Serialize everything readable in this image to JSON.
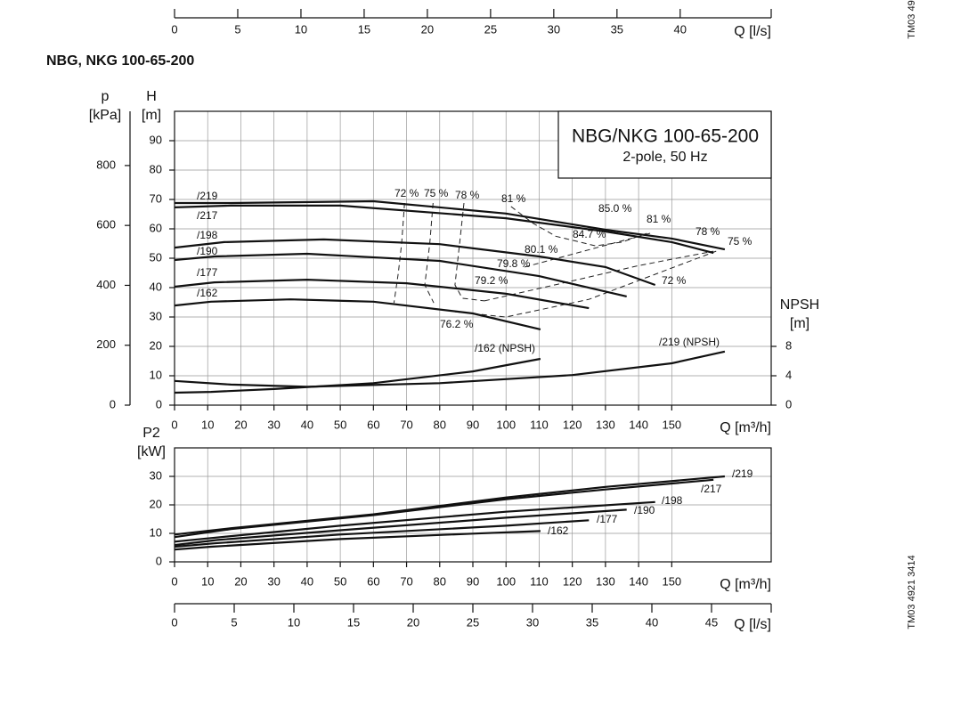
{
  "title": "NBG, NKG 100-65-200",
  "drawing_numbers": [
    "TM03 49",
    "TM03 4921 3414"
  ],
  "info_box": {
    "title": "NBG/NKG 100-65-200",
    "subtitle": "2-pole, 50 Hz"
  },
  "chart_data": [
    {
      "type": "axis",
      "xlabel": "Q [l/s]",
      "xlim": [
        0,
        47.2
      ],
      "xticks": [
        0,
        5,
        10,
        15,
        20,
        25,
        30,
        35,
        40
      ]
    },
    {
      "type": "line",
      "xlabel": "Q [m³/h]",
      "ylabel": [
        "H",
        "[m]"
      ],
      "plabel": [
        "p",
        "[kPa]"
      ],
      "npshlabel": [
        "NPSH",
        "[m]"
      ],
      "xlim": [
        0,
        180
      ],
      "xticks": [
        0,
        10,
        20,
        30,
        40,
        50,
        60,
        70,
        80,
        90,
        100,
        110,
        120,
        130,
        140,
        150
      ],
      "ylim": [
        0,
        100
      ],
      "yticks": [
        0,
        10,
        20,
        30,
        40,
        50,
        60,
        70,
        80,
        90
      ],
      "plim": [
        0,
        981
      ],
      "pticks": [
        0,
        200,
        400,
        600,
        800
      ],
      "npshlim": [
        0,
        40
      ],
      "npshticks": [
        0,
        4,
        8
      ],
      "grid": true,
      "series": [
        {
          "name": "/219",
          "color": "#111111",
          "x": [
            0,
            17,
            60,
            100,
            130,
            150,
            166
          ],
          "values": [
            68.8,
            68.8,
            69.4,
            65.2,
            59.7,
            56.7,
            53
          ]
        },
        {
          "name": "/217",
          "color": "#111111",
          "x": [
            0,
            17,
            50,
            100,
            130,
            150,
            162.6
          ],
          "values": [
            67.3,
            67.9,
            67.9,
            63.6,
            59.1,
            55.5,
            51.8
          ]
        },
        {
          "name": "/198",
          "color": "#111111",
          "x": [
            0,
            15,
            45,
            80,
            110,
            130,
            145
          ],
          "values": [
            53.6,
            55.5,
            56.4,
            54.8,
            50.6,
            47,
            40.9
          ]
        },
        {
          "name": "/190",
          "color": "#111111",
          "x": [
            0,
            12,
            40,
            80,
            110,
            136.4
          ],
          "values": [
            49.4,
            50.6,
            51.5,
            49.1,
            43.9,
            37
          ]
        },
        {
          "name": "/177",
          "color": "#111111",
          "x": [
            0,
            12,
            40,
            70,
            100,
            125
          ],
          "values": [
            40.3,
            41.8,
            42.7,
            41.5,
            37.9,
            33
          ]
        },
        {
          "name": "/162",
          "color": "#111111",
          "x": [
            0,
            11,
            35,
            60,
            90,
            110.4
          ],
          "values": [
            33.9,
            35.2,
            36,
            35.2,
            31.2,
            25.8
          ]
        },
        {
          "name": "/162 (NPSH)",
          "axis": "npsh",
          "color": "#111111",
          "x": [
            0,
            11,
            30,
            60,
            90,
            110.4
          ],
          "values": [
            1.7,
            1.8,
            2.2,
            3,
            4.6,
            6.3
          ]
        },
        {
          "name": "/219 (NPSH)",
          "axis": "npsh",
          "color": "#111111",
          "x": [
            0,
            17,
            40,
            80,
            120,
            150,
            166
          ],
          "values": [
            3.3,
            2.8,
            2.5,
            3,
            4.1,
            5.7,
            7.3
          ]
        }
      ],
      "efficiency_curves": [
        {
          "x": [
            69.4,
            68.5,
            67.5,
            66.2
          ],
          "values": [
            68.8,
            55,
            45,
            34.8
          ]
        },
        {
          "x": [
            78,
            77,
            75.5,
            78.2
          ],
          "values": [
            68.8,
            55,
            40.9,
            34.8
          ]
        },
        {
          "x": [
            87.3,
            86,
            84.6,
            86.8,
            93.5
          ],
          "values": [
            68.8,
            55,
            40.9,
            36.4,
            35.5
          ]
        },
        {
          "x": [
            101.5,
            108,
            115,
            127,
            135,
            142.5
          ],
          "values": [
            67.6,
            62,
            57.5,
            54.2,
            55.5,
            58.5
          ]
        },
        {
          "x": [
            93.5,
            115,
            140,
            162.6
          ],
          "values": [
            35.5,
            41,
            47.5,
            52.4
          ]
        },
        {
          "x": [
            84.6,
            100,
            125,
            163.4
          ],
          "values": [
            31.8,
            30,
            36,
            52.4
          ]
        },
        {
          "x": [
            105.6,
            143.5
          ],
          "values": [
            47,
            58.5
          ]
        }
      ],
      "annotations": [
        "72 %",
        "75 %",
        "78 %",
        "81 %",
        "85.0 %",
        "81 %",
        "78 %",
        "75 %",
        "84.7 %",
        "80.1 %",
        "79.8 %",
        "79.2 %",
        "72 %",
        "76.2 %"
      ]
    },
    {
      "type": "line",
      "xlabel": "Q [m³/h]",
      "ylabel": [
        "P2",
        "[kW]"
      ],
      "xlim": [
        0,
        180
      ],
      "xticks": [
        0,
        10,
        20,
        30,
        40,
        50,
        60,
        70,
        80,
        90,
        100,
        110,
        120,
        130,
        140,
        150
      ],
      "ylim": [
        0,
        40
      ],
      "yticks": [
        0,
        10,
        20,
        30
      ],
      "grid": true,
      "series": [
        {
          "name": "/219",
          "color": "#111111",
          "x": [
            0,
            17,
            60,
            100,
            130,
            166
          ],
          "values": [
            9.6,
            11.8,
            16.7,
            22.6,
            26.3,
            30
          ]
        },
        {
          "name": "/217",
          "color": "#111111",
          "x": [
            0,
            17,
            60,
            100,
            130,
            162.6
          ],
          "values": [
            8.7,
            11.5,
            16.4,
            22,
            25.4,
            28.8
          ]
        },
        {
          "name": "/198",
          "color": "#111111",
          "x": [
            0,
            14,
            50,
            100,
            145
          ],
          "values": [
            7.1,
            8.7,
            12.7,
            17.6,
            21
          ]
        },
        {
          "name": "/190",
          "color": "#111111",
          "x": [
            0,
            13,
            50,
            100,
            136.4
          ],
          "values": [
            5.9,
            7.7,
            11.1,
            15.5,
            18.3
          ]
        },
        {
          "name": "/177",
          "color": "#111111",
          "x": [
            0,
            12,
            50,
            100,
            125
          ],
          "values": [
            5.3,
            6.5,
            9.6,
            12.7,
            14.6
          ]
        },
        {
          "name": "/162",
          "color": "#111111",
          "x": [
            0,
            11,
            50,
            90,
            110.4
          ],
          "values": [
            4.3,
            5.3,
            8,
            9.9,
            10.8
          ]
        }
      ]
    },
    {
      "type": "axis",
      "xlabel": "Q [l/s]",
      "xlim": [
        0,
        50
      ],
      "xticks": [
        0,
        5,
        10,
        15,
        20,
        25,
        30,
        35,
        40,
        45
      ]
    }
  ]
}
